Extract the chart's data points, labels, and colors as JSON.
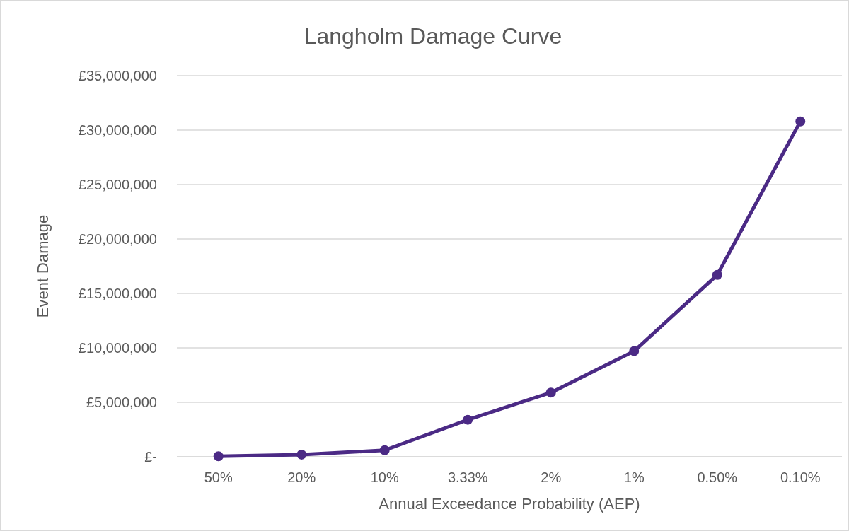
{
  "chart_data": {
    "type": "line",
    "title": "Langholm Damage Curve",
    "xlabel": "Annual Exceedance Probability (AEP)",
    "ylabel": "Event Damage",
    "categories": [
      "50%",
      "20%",
      "10%",
      "3.33%",
      "2%",
      "1%",
      "0.50%",
      "0.10%"
    ],
    "series": [
      {
        "color": "#4b2a85",
        "values": [
          50000,
          200000,
          600000,
          3400000,
          5900000,
          9700000,
          16700000,
          30800000
        ]
      }
    ],
    "ylim": [
      0,
      35000000
    ],
    "yticks": [
      {
        "value": 0,
        "label": "£-"
      },
      {
        "value": 5000000,
        "label": "£5,000,000"
      },
      {
        "value": 10000000,
        "label": "£10,000,000"
      },
      {
        "value": 15000000,
        "label": "£15,000,000"
      },
      {
        "value": 20000000,
        "label": "£20,000,000"
      },
      {
        "value": 25000000,
        "label": "£25,000,000"
      },
      {
        "value": 30000000,
        "label": "£30,000,000"
      },
      {
        "value": 35000000,
        "label": "£35,000,000"
      }
    ],
    "grid": "y",
    "marker": "circle",
    "line_style": "solid"
  }
}
